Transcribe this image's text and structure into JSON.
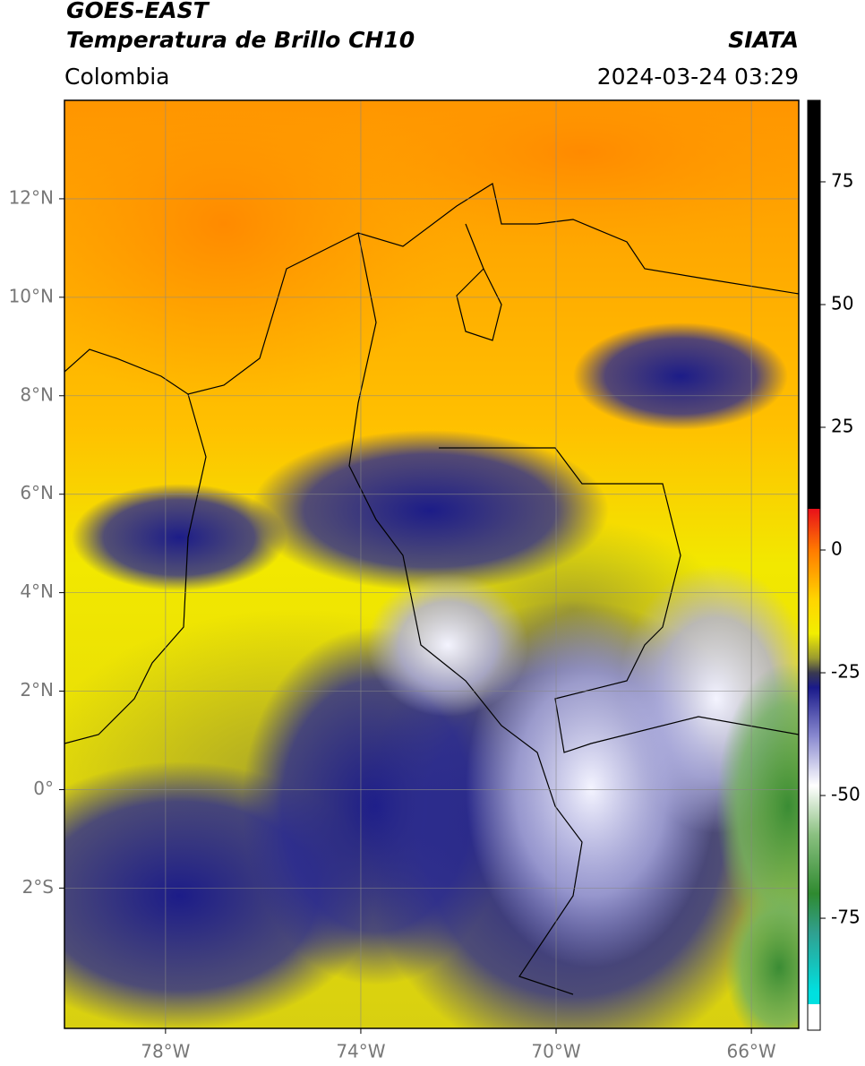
{
  "header": {
    "title": "GOES-EAST",
    "subtitle": "Temperatura de Brillo CH10",
    "region": "Colombia",
    "source": "SIATA",
    "datetime": "2024-03-24 03:29"
  },
  "map": {
    "lon_range": [
      -80.07,
      -65.03
    ],
    "lat_range": [
      -4.85,
      14
    ],
    "lon_ticks": [
      {
        "value": -78,
        "label": "78°W"
      },
      {
        "value": -74,
        "label": "74°W"
      },
      {
        "value": -70,
        "label": "70°W"
      },
      {
        "value": -66,
        "label": "66°W"
      }
    ],
    "lat_ticks": [
      {
        "value": 12,
        "label": "12°N"
      },
      {
        "value": 10,
        "label": "10°N"
      },
      {
        "value": 8,
        "label": "8°N"
      },
      {
        "value": 6,
        "label": "6°N"
      },
      {
        "value": 4,
        "label": "4°N"
      },
      {
        "value": 2,
        "label": "2°N"
      },
      {
        "value": 0,
        "label": "0°"
      },
      {
        "value": -2,
        "label": "2°S"
      }
    ]
  },
  "colorbar": {
    "range": [
      -97.8,
      91.6
    ],
    "ticks": [
      75,
      50,
      25,
      0,
      -25,
      -50,
      -75
    ],
    "stops": [
      {
        "value": 91.6,
        "color": "#000000"
      },
      {
        "value": 8.4,
        "color": "#000000"
      },
      {
        "value": 8.4,
        "color": "#e8101a"
      },
      {
        "value": 0,
        "color": "#ff7a00"
      },
      {
        "value": -10,
        "color": "#ffd400"
      },
      {
        "value": -17,
        "color": "#f2ee00"
      },
      {
        "value": -22,
        "color": "#9a9a30"
      },
      {
        "value": -25,
        "color": "#3a3a50"
      },
      {
        "value": -28,
        "color": "#1a1a8a"
      },
      {
        "value": -38,
        "color": "#8a8ad0"
      },
      {
        "value": -48,
        "color": "#ffffff"
      },
      {
        "value": -58,
        "color": "#8ac080"
      },
      {
        "value": -70,
        "color": "#2f8a30"
      },
      {
        "value": -78,
        "color": "#30a090"
      },
      {
        "value": -90,
        "color": "#00e0e0"
      },
      {
        "value": -92.5,
        "color": "#00e0e0"
      },
      {
        "value": -92.5,
        "color": "#ffffff"
      },
      {
        "value": -97.8,
        "color": "#ffffff"
      }
    ]
  }
}
